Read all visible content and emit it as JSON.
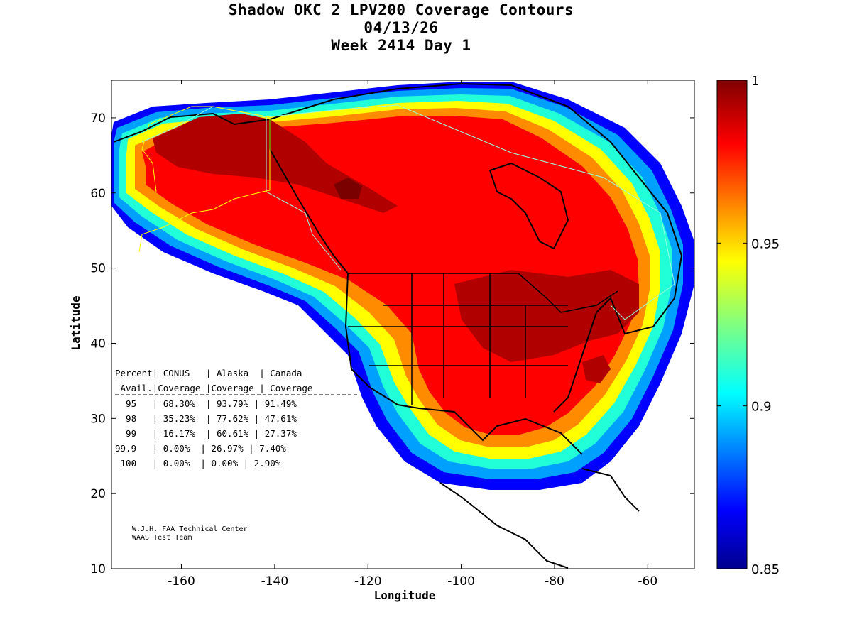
{
  "title": {
    "line1": "Shadow OKC 2 LPV200 Coverage Contours",
    "line2": "04/13/26",
    "line3": "Week 2414 Day 1"
  },
  "axes": {
    "xlabel": "Longitude",
    "ylabel": "Latitude",
    "xlim": [
      -175,
      -50
    ],
    "ylim": [
      10,
      75
    ],
    "xticks": [
      -160,
      -140,
      -120,
      -100,
      -80,
      -60
    ],
    "yticks": [
      10,
      20,
      30,
      40,
      50,
      60,
      70
    ]
  },
  "colorbar": {
    "range": [
      0.85,
      1
    ],
    "ticks": [
      0.85,
      0.9,
      0.95,
      1
    ],
    "tick_labels": [
      "0.85",
      "0.9",
      "0.95",
      "1"
    ],
    "colormap": "jet"
  },
  "stats_table": {
    "header1": "Percent| CONUS   | Alaska  | Canada",
    "header2": " Avail.|Coverage |Coverage | Coverage",
    "rows": [
      "  95   | 68.30%  | 93.79% | 91.49%",
      "  98   | 35.23%  | 77.62% | 47.61%",
      "  99   | 16.17%  | 60.61% | 27.37%",
      "99.9   | 0.00%  | 26.97% | 7.40%",
      " 100   | 0.00%  | 0.00% | 2.90%"
    ],
    "values": [
      {
        "percent": "95",
        "conus": "68.30%",
        "alaska": "93.79%",
        "canada": "91.49%"
      },
      {
        "percent": "98",
        "conus": "35.23%",
        "alaska": "77.62%",
        "canada": "47.61%"
      },
      {
        "percent": "99",
        "conus": "16.17%",
        "alaska": "60.61%",
        "canada": "27.37%"
      },
      {
        "percent": "99.9",
        "conus": "0.00%",
        "alaska": "26.97%",
        "canada": "7.40%"
      },
      {
        "percent": "100",
        "conus": "0.00%",
        "alaska": "0.00%",
        "canada": "2.90%"
      }
    ]
  },
  "credit": {
    "line1": "W.J.H. FAA Technical Center",
    "line2": "WAAS Test Team"
  }
}
